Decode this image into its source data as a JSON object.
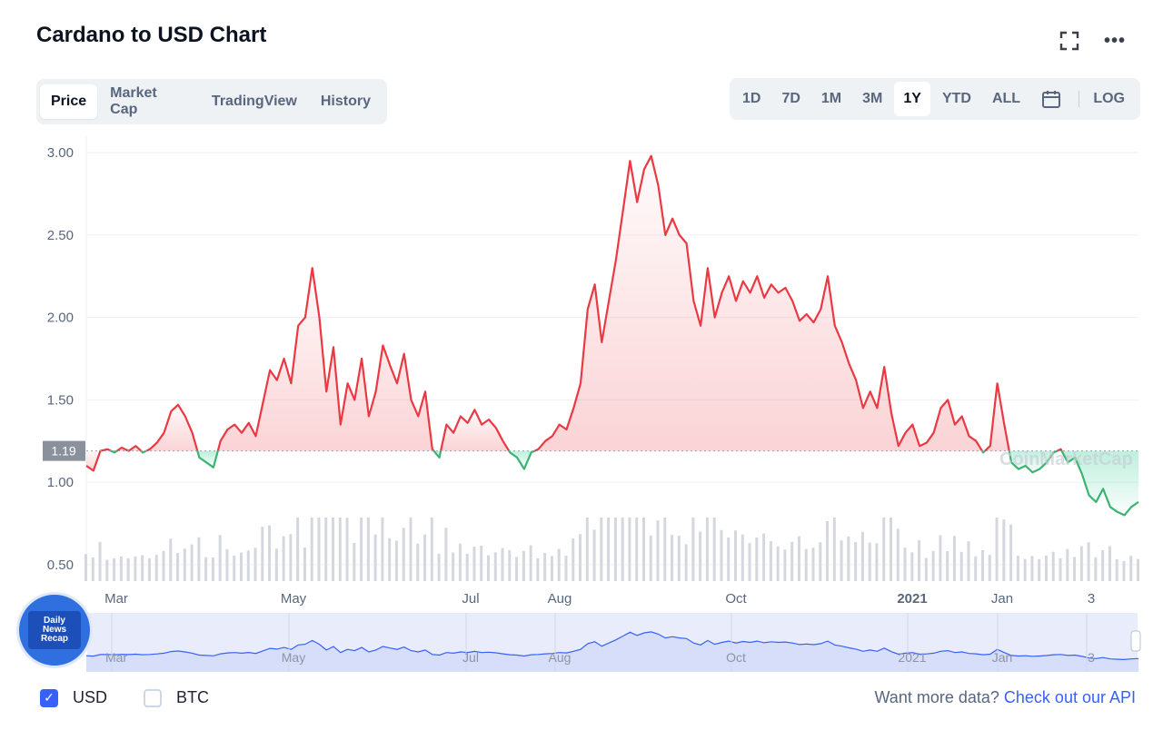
{
  "header": {
    "title": "Cardano to USD Chart",
    "expand_icon": "expand-icon",
    "more_icon": "more-icon",
    "more_glyph": "•••"
  },
  "tabs": [
    {
      "label": "Price",
      "active": true
    },
    {
      "label": "Market Cap",
      "active": false
    },
    {
      "label": "TradingView",
      "active": false
    },
    {
      "label": "History",
      "active": false
    }
  ],
  "ranges": [
    {
      "label": "1D",
      "active": false
    },
    {
      "label": "7D",
      "active": false
    },
    {
      "label": "1M",
      "active": false
    },
    {
      "label": "3M",
      "active": false
    },
    {
      "label": "1Y",
      "active": true
    },
    {
      "label": "YTD",
      "active": false
    },
    {
      "label": "ALL",
      "active": false
    }
  ],
  "calendar_icon": "calendar-icon",
  "log_label": "LOG",
  "watermark": "CoinMarketCap",
  "logo": {
    "lines": [
      "Daily",
      "News",
      "Recap"
    ]
  },
  "chart_data": {
    "type": "line",
    "title": "",
    "ylim": [
      0.4,
      3.1
    ],
    "yticks": [
      0.5,
      1.0,
      1.5,
      2.0,
      2.5,
      3.0
    ],
    "ytick_labels": [
      "0.50",
      "1.00",
      "1.50",
      "2.00",
      "2.50",
      "3.00"
    ],
    "current_price": 1.19,
    "current_price_label": "1.19",
    "xtick_labels": [
      "Mar",
      "May",
      "Jul",
      "Aug",
      "Oct",
      "2021",
      "Jan",
      "3"
    ],
    "grid": true,
    "colors": {
      "up": "#16c784",
      "line_up": "#3cb371",
      "down": "#ea3943",
      "navigator": "#3861fb"
    },
    "series": [
      {
        "values": [
          1.1,
          1.07,
          1.19,
          1.2,
          1.18,
          1.21,
          1.19,
          1.22,
          1.18,
          1.2,
          1.24,
          1.3,
          1.43,
          1.47,
          1.4,
          1.3,
          1.15,
          1.12,
          1.09,
          1.25,
          1.32,
          1.35,
          1.3,
          1.36,
          1.28,
          1.48,
          1.68,
          1.62,
          1.75,
          1.6,
          1.95,
          2.0,
          2.3,
          2.0,
          1.55,
          1.82,
          1.35,
          1.6,
          1.5,
          1.75,
          1.4,
          1.55,
          1.83,
          1.71,
          1.6,
          1.78,
          1.5,
          1.4,
          1.55,
          1.2,
          1.15,
          1.35,
          1.3,
          1.4,
          1.36,
          1.44,
          1.35,
          1.38,
          1.33,
          1.25,
          1.18,
          1.15,
          1.08,
          1.18,
          1.2,
          1.25,
          1.28,
          1.35,
          1.32,
          1.45,
          1.6,
          2.05,
          2.2,
          1.85,
          2.1,
          2.35,
          2.65,
          2.95,
          2.7,
          2.9,
          2.98,
          2.8,
          2.5,
          2.6,
          2.5,
          2.45,
          2.1,
          1.95,
          2.3,
          2.0,
          2.15,
          2.25,
          2.1,
          2.22,
          2.15,
          2.25,
          2.12,
          2.2,
          2.15,
          2.18,
          2.1,
          1.98,
          2.02,
          1.97,
          2.05,
          2.25,
          1.95,
          1.85,
          1.72,
          1.62,
          1.45,
          1.55,
          1.45,
          1.7,
          1.42,
          1.22,
          1.3,
          1.35,
          1.22,
          1.24,
          1.3,
          1.45,
          1.5,
          1.35,
          1.4,
          1.28,
          1.25,
          1.18,
          1.22,
          1.6,
          1.35,
          1.12,
          1.08,
          1.1,
          1.06,
          1.08,
          1.12,
          1.18,
          1.2,
          1.12,
          1.15,
          1.05,
          0.92,
          0.88,
          0.96,
          0.85,
          0.82,
          0.8,
          0.85,
          0.88
        ]
      }
    ]
  },
  "footer": {
    "usd_label": "USD",
    "btc_label": "BTC",
    "cta_text": "Want more data?",
    "cta_link": "Check out our API"
  }
}
